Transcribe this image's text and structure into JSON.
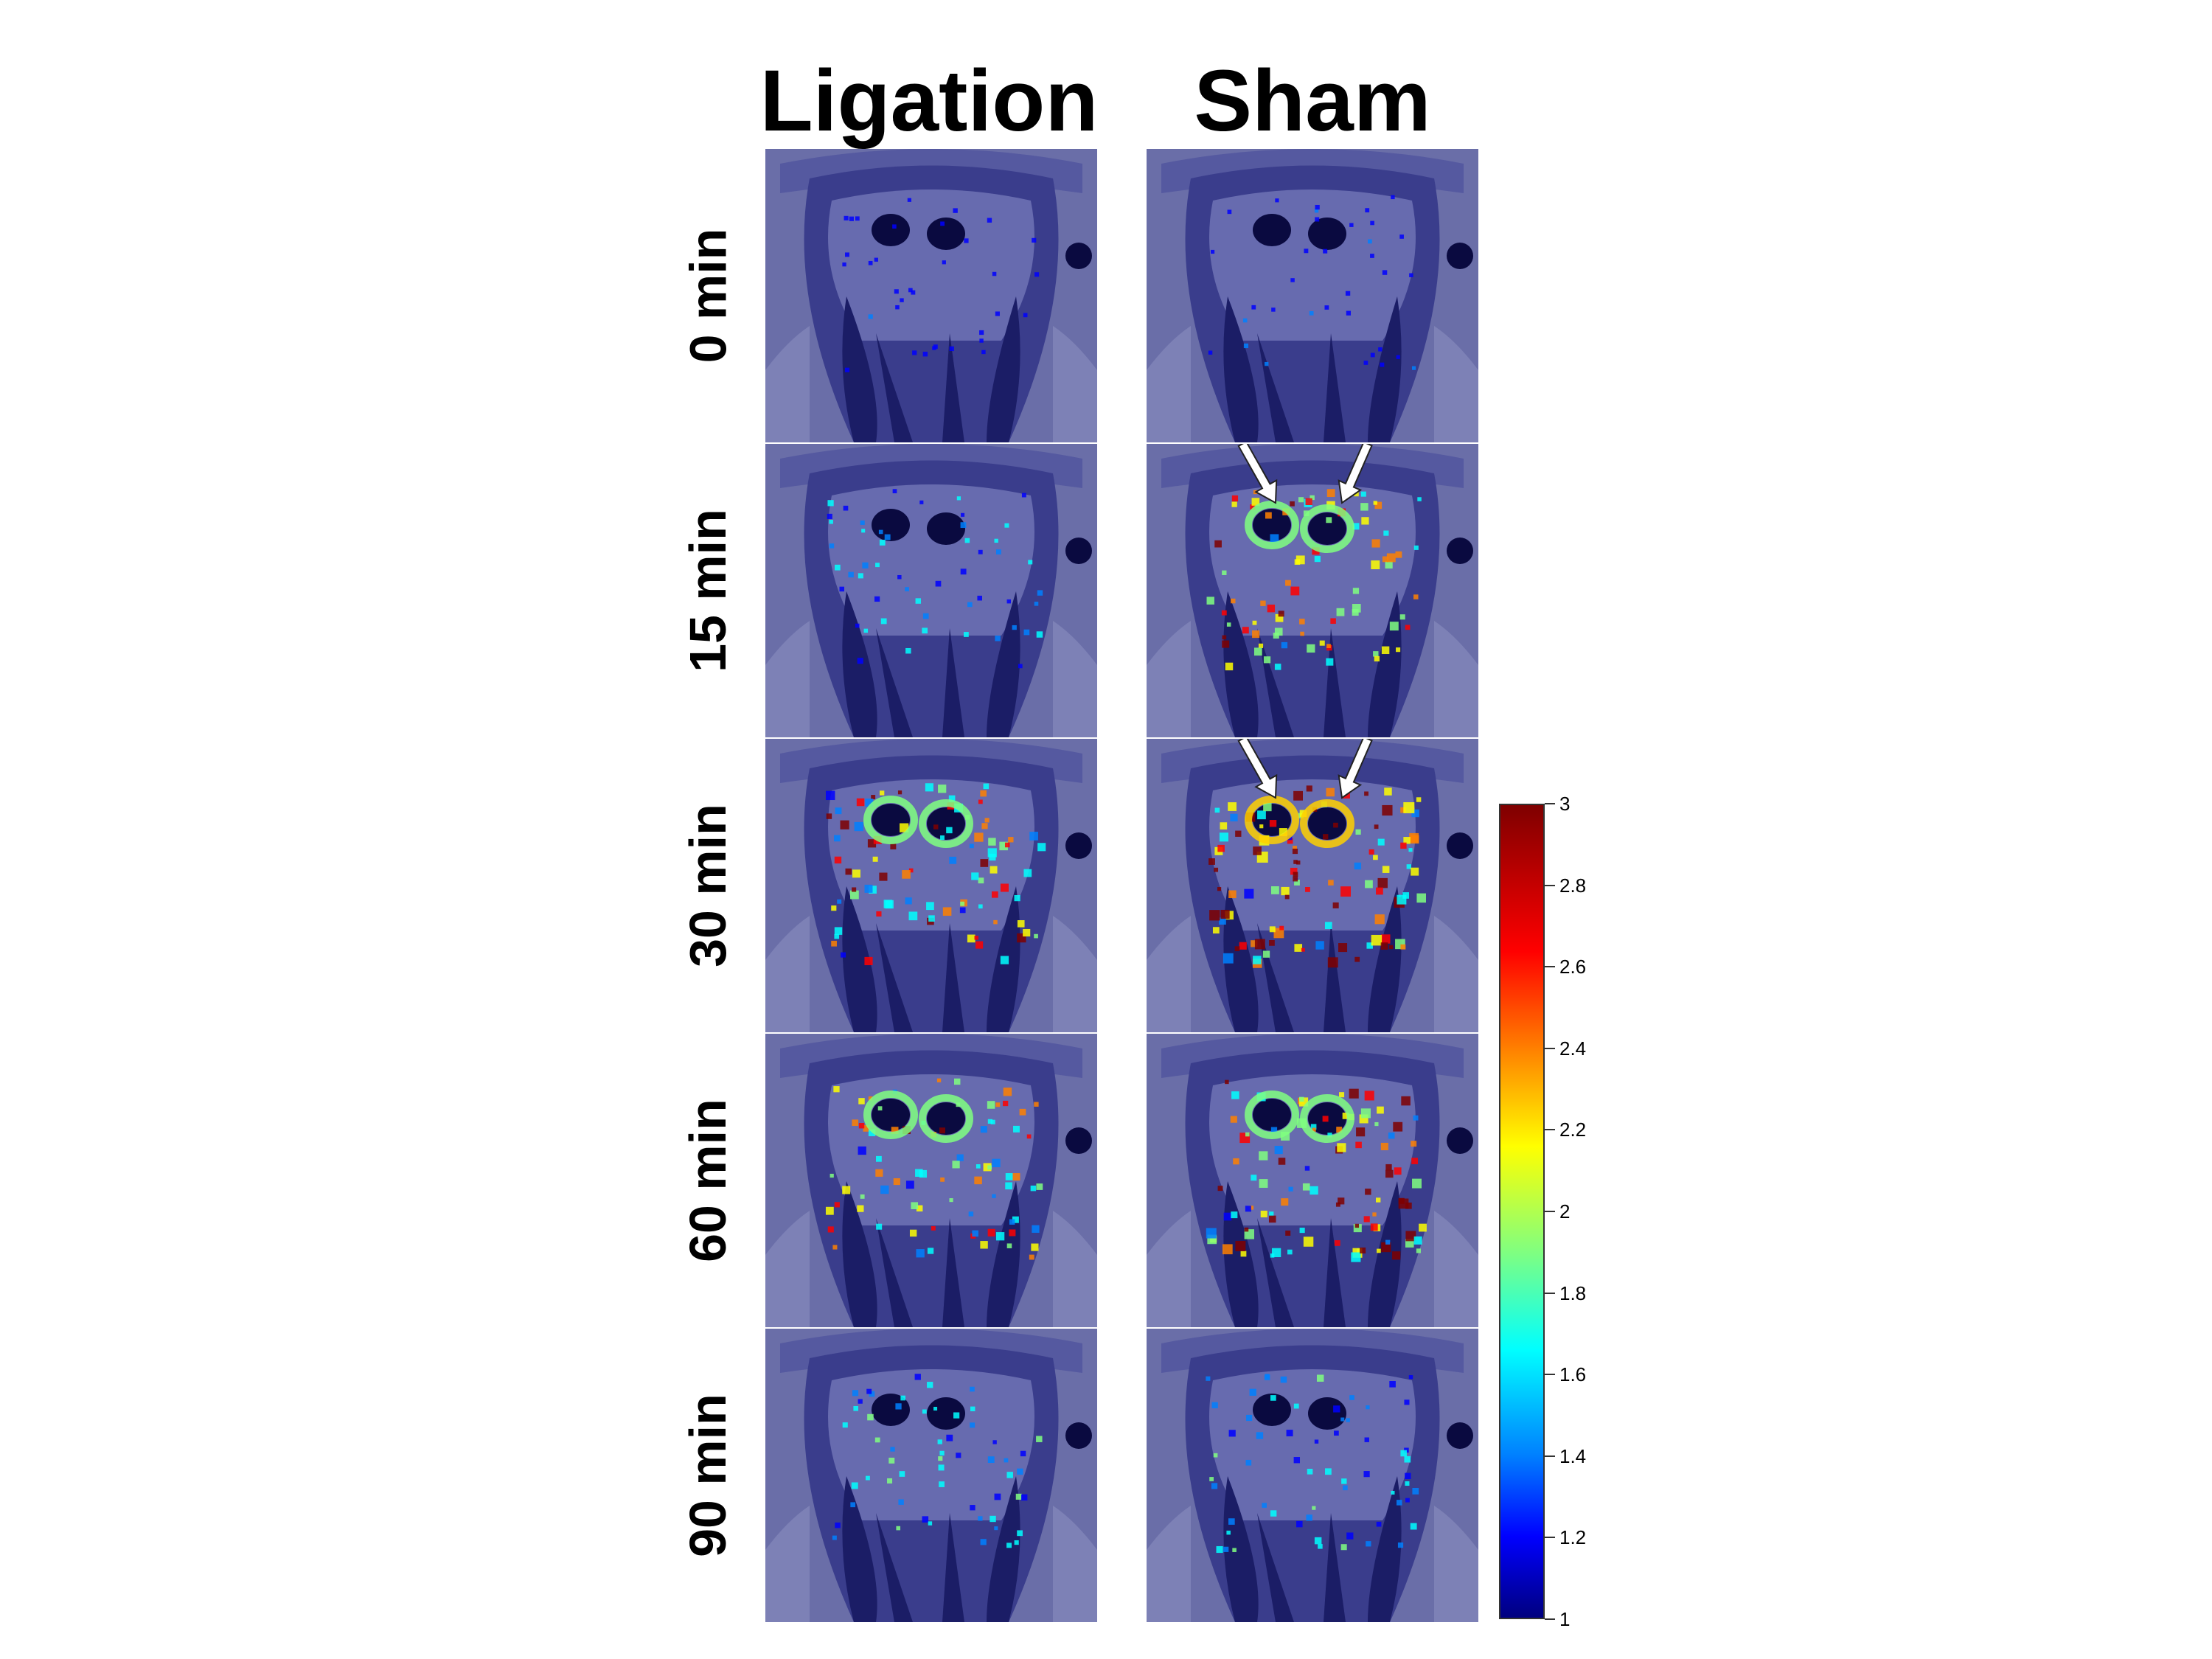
{
  "columns": [
    "Ligation",
    "Sham"
  ],
  "rows": [
    "0 min",
    "15 min",
    "30 min",
    "60 min",
    "90 min"
  ],
  "colorbar": {
    "min": 1,
    "max": 3,
    "ticks": [
      "3",
      "2.8",
      "2.6",
      "2.4",
      "2.2",
      "2",
      "1.8",
      "1.6",
      "1.4",
      "1.2",
      "1"
    ],
    "colors": [
      "#7f0000",
      "#ff0000",
      "#ff8000",
      "#ffff00",
      "#80ff80",
      "#00ffff",
      "#0080ff",
      "#0000ff",
      "#00007f"
    ]
  },
  "arrows": [
    {
      "panel": "Sham 15 min",
      "count": 2
    },
    {
      "panel": "Sham 30 min",
      "count": 2
    }
  ]
}
